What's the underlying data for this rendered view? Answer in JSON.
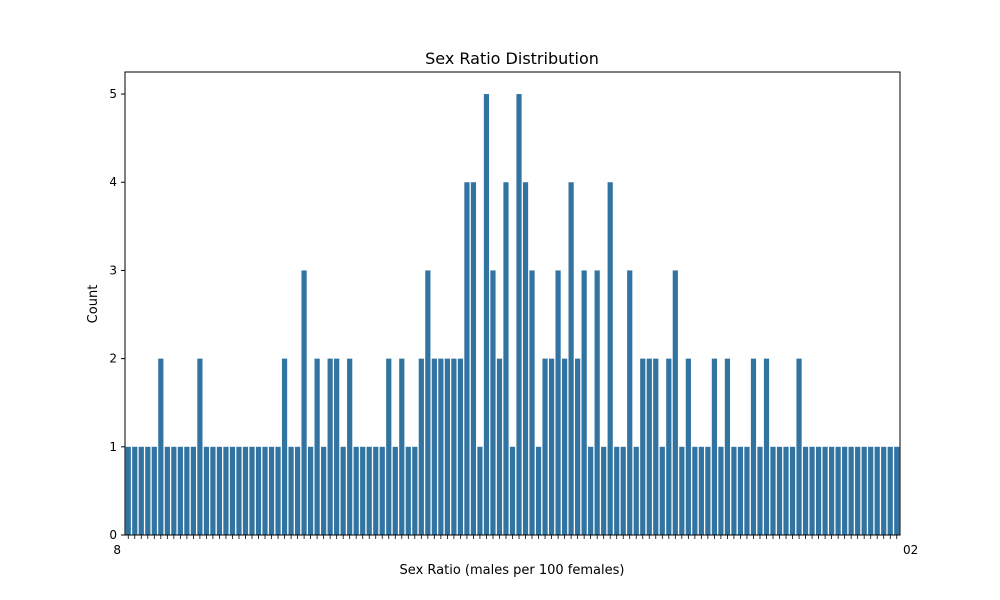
{
  "chart_data": {
    "type": "bar",
    "title": "Sex Ratio Distribution",
    "xlabel": "Sex Ratio (males per 100 females)",
    "ylabel": "Count",
    "ylim": [
      0,
      5.25
    ],
    "yticks": [
      0,
      1,
      2,
      3,
      4,
      5
    ],
    "grid": false,
    "bar_color": "#3274a1",
    "first_tick_label": "8",
    "last_tick_label": "02",
    "values": [
      1,
      1,
      1,
      1,
      1,
      2,
      1,
      1,
      1,
      1,
      1,
      2,
      1,
      1,
      1,
      1,
      1,
      1,
      1,
      1,
      1,
      1,
      1,
      1,
      2,
      1,
      1,
      3,
      1,
      2,
      1,
      2,
      2,
      1,
      2,
      1,
      1,
      1,
      1,
      1,
      2,
      1,
      2,
      1,
      1,
      2,
      3,
      2,
      2,
      2,
      2,
      2,
      4,
      4,
      1,
      5,
      3,
      2,
      4,
      1,
      5,
      4,
      3,
      1,
      2,
      2,
      3,
      2,
      4,
      2,
      3,
      1,
      3,
      1,
      4,
      1,
      1,
      3,
      1,
      2,
      2,
      2,
      1,
      2,
      3,
      1,
      2,
      1,
      1,
      1,
      2,
      1,
      2,
      1,
      1,
      1,
      2,
      1,
      2,
      1,
      1,
      1,
      1,
      2,
      1,
      1,
      1,
      1,
      1,
      1,
      1,
      1,
      1,
      1,
      1,
      1,
      1,
      1,
      1
    ]
  }
}
